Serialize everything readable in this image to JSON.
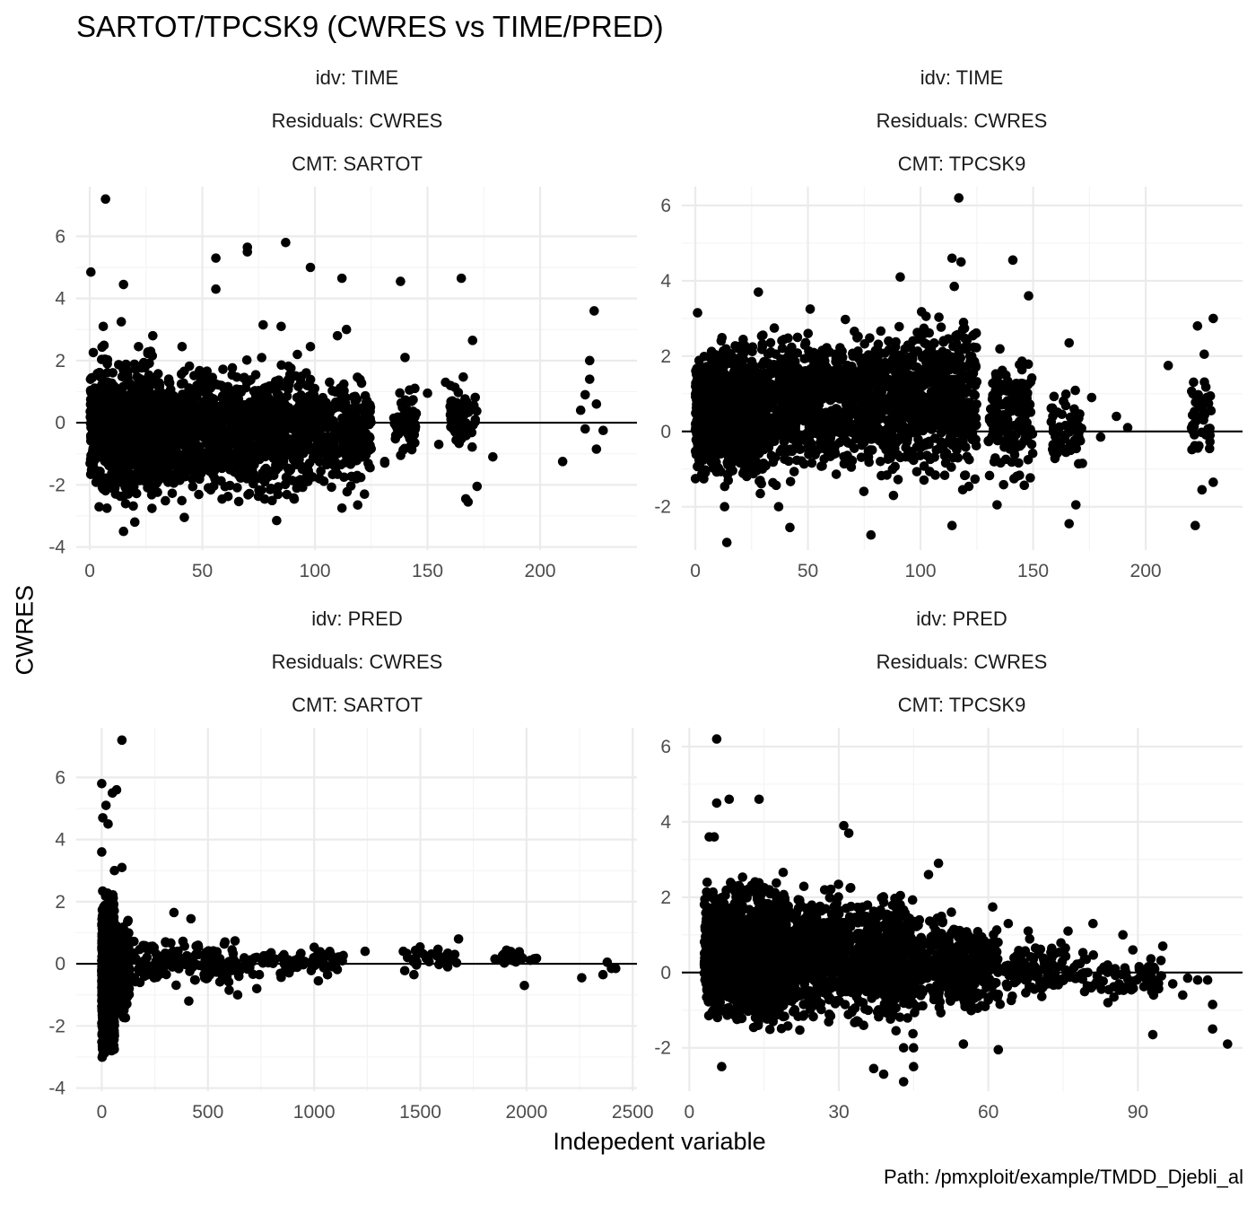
{
  "title": "SARTOT/TPCSK9 (CWRES vs TIME/PRED)",
  "xlabel": "Indepedent variable",
  "ylabel": "CWRES",
  "caption": "Path: /pmxploit/example/TMDD_Djebli_al",
  "colors": {
    "points": "#000000",
    "grid_major": "#ebebeb",
    "grid_minor": "#f4f4f4",
    "hline": "#000000"
  },
  "chart_data": [
    {
      "type": "scatter",
      "strips": [
        "idv: TIME",
        "Residuals: CWRES",
        "CMT: SARTOT"
      ],
      "xticks": [
        0,
        50,
        100,
        150,
        200
      ],
      "yticks": [
        -4,
        -2,
        0,
        2,
        4,
        6
      ],
      "xlim": [
        -6,
        243
      ],
      "ylim": [
        -4.1,
        7.6
      ],
      "hline": 0,
      "outliers": [
        [
          7,
          7.2
        ],
        [
          0.5,
          4.85
        ],
        [
          15,
          4.45
        ],
        [
          14,
          3.25
        ],
        [
          6,
          3.1
        ],
        [
          56,
          5.3
        ],
        [
          56,
          4.3
        ],
        [
          70,
          5.65
        ],
        [
          70,
          5.5
        ],
        [
          87,
          5.8
        ],
        [
          98,
          5.0
        ],
        [
          112,
          4.65
        ],
        [
          138,
          4.55
        ],
        [
          165,
          4.65
        ],
        [
          224,
          3.6
        ],
        [
          41,
          2.45
        ],
        [
          28,
          2.8
        ],
        [
          98,
          2.45
        ],
        [
          77,
          3.15
        ],
        [
          85,
          3.1
        ],
        [
          110,
          2.8
        ],
        [
          114,
          3.0
        ],
        [
          140,
          2.1
        ],
        [
          170,
          2.65
        ],
        [
          222,
          2.0
        ],
        [
          222,
          1.4
        ],
        [
          210,
          -1.25
        ],
        [
          228,
          -0.25
        ],
        [
          179,
          -1.1
        ],
        [
          172,
          -2.05
        ],
        [
          167,
          -2.45
        ],
        [
          168,
          -2.55
        ],
        [
          119,
          -2.65
        ],
        [
          122,
          -2.3
        ],
        [
          112,
          -2.75
        ],
        [
          83,
          -3.15
        ],
        [
          42,
          -3.05
        ],
        [
          20,
          -3.2
        ],
        [
          15,
          -3.5
        ],
        [
          131,
          -1.25
        ],
        [
          150,
          0.95
        ],
        [
          158,
          1.3
        ],
        [
          155,
          -0.7
        ],
        [
          142,
          1.05
        ],
        [
          161,
          0.7
        ],
        [
          218,
          0.4
        ],
        [
          220,
          0.9
        ],
        [
          225,
          0.6
        ],
        [
          225,
          -0.85
        ],
        [
          131,
          -1.3
        ],
        [
          145,
          0.3
        ],
        [
          220,
          -0.2
        ]
      ],
      "clusters": [
        {
          "x": [
            0,
            30
          ],
          "y": [
            -2.7,
            2.3
          ],
          "n": 900
        },
        {
          "x": [
            30,
            60
          ],
          "y": [
            -2.5,
            1.8
          ],
          "n": 500
        },
        {
          "x": [
            60,
            95
          ],
          "y": [
            -2.7,
            2.0
          ],
          "n": 550
        },
        {
          "x": [
            95,
            125
          ],
          "y": [
            -2.2,
            1.6
          ],
          "n": 350
        },
        {
          "x": [
            135,
            145
          ],
          "y": [
            -1.2,
            1.2
          ],
          "n": 60
        },
        {
          "x": [
            160,
            172
          ],
          "y": [
            -1.0,
            1.4
          ],
          "n": 60
        }
      ]
    },
    {
      "type": "scatter",
      "strips": [
        "idv: TIME",
        "Residuals: CWRES",
        "CMT: TPCSK9"
      ],
      "xticks": [
        0,
        50,
        100,
        150,
        200
      ],
      "yticks": [
        -2,
        0,
        2,
        4,
        6
      ],
      "xlim": [
        -6,
        243
      ],
      "ylim": [
        -3.15,
        6.5
      ],
      "hline": 0,
      "outliers": [
        [
          117,
          6.2
        ],
        [
          114,
          4.6
        ],
        [
          118,
          4.5
        ],
        [
          141,
          4.55
        ],
        [
          148,
          3.6
        ],
        [
          115,
          3.85
        ],
        [
          91,
          4.1
        ],
        [
          14,
          -2.95
        ],
        [
          42,
          -2.55
        ],
        [
          78,
          -2.75
        ],
        [
          114,
          -2.5
        ],
        [
          166,
          -2.45
        ],
        [
          222,
          -2.5
        ],
        [
          176,
          0.9
        ],
        [
          187,
          0.4
        ],
        [
          192,
          0.1
        ],
        [
          210,
          1.75
        ],
        [
          230,
          3.0
        ],
        [
          223,
          2.8
        ],
        [
          226,
          2.05
        ],
        [
          229,
          0.55
        ],
        [
          230,
          -1.35
        ],
        [
          225,
          -1.55
        ],
        [
          221,
          1.0
        ],
        [
          1,
          3.15
        ],
        [
          28,
          3.7
        ],
        [
          51,
          3.25
        ],
        [
          13,
          -2.0
        ],
        [
          37,
          -2.0
        ],
        [
          88,
          -1.7
        ],
        [
          134,
          -1.95
        ],
        [
          169,
          -1.95
        ],
        [
          166,
          2.35
        ],
        [
          180,
          -0.15
        ]
      ],
      "clusters": [
        {
          "x": [
            0,
            30
          ],
          "y": [
            -1.5,
            2.6
          ],
          "n": 950
        },
        {
          "x": [
            30,
            60
          ],
          "y": [
            -1.3,
            2.7
          ],
          "n": 500
        },
        {
          "x": [
            60,
            95
          ],
          "y": [
            -1.4,
            2.8
          ],
          "n": 550
        },
        {
          "x": [
            95,
            125
          ],
          "y": [
            -1.5,
            3.2
          ],
          "n": 450
        },
        {
          "x": [
            130,
            150
          ],
          "y": [
            -1.6,
            2.4
          ],
          "n": 170
        },
        {
          "x": [
            158,
            172
          ],
          "y": [
            -1.2,
            1.4
          ],
          "n": 60
        },
        {
          "x": [
            220,
            229
          ],
          "y": [
            -1.2,
            2.0
          ],
          "n": 40
        }
      ]
    },
    {
      "type": "scatter",
      "strips": [
        "idv: PRED",
        "Residuals: CWRES",
        "CMT: SARTOT"
      ],
      "xticks": [
        0,
        500,
        1000,
        1500,
        2000,
        2500
      ],
      "yticks": [
        -4,
        -2,
        0,
        2,
        4,
        6
      ],
      "xlim": [
        -120,
        2520
      ],
      "ylim": [
        -4.1,
        7.6
      ],
      "hline": 0,
      "outliers": [
        [
          95,
          7.2
        ],
        [
          0,
          5.8
        ],
        [
          20,
          5.1
        ],
        [
          50,
          5.5
        ],
        [
          70,
          5.6
        ],
        [
          5,
          4.7
        ],
        [
          30,
          4.5
        ],
        [
          0,
          3.6
        ],
        [
          95,
          3.1
        ],
        [
          60,
          3.0
        ],
        [
          2380,
          0.05
        ],
        [
          2260,
          -0.45
        ],
        [
          2360,
          -0.35
        ],
        [
          2400,
          -0.15
        ],
        [
          2420,
          -0.15
        ],
        [
          1990,
          -0.7
        ],
        [
          1680,
          0.8
        ],
        [
          1440,
          0.2
        ],
        [
          1470,
          -0.35
        ],
        [
          1420,
          0.4
        ],
        [
          1240,
          0.4
        ],
        [
          1020,
          -0.55
        ],
        [
          730,
          -0.8
        ],
        [
          640,
          -1.0
        ],
        [
          600,
          -0.85
        ],
        [
          410,
          -1.2
        ],
        [
          340,
          1.65
        ],
        [
          420,
          1.45
        ],
        [
          180,
          -0.6
        ]
      ],
      "clusters": [
        {
          "x": [
            0,
            60
          ],
          "y": [
            -3.1,
            2.3
          ],
          "n": 1400
        },
        {
          "x": [
            60,
            130
          ],
          "y": [
            -1.8,
            1.3
          ],
          "n": 350
        },
        {
          "x": [
            150,
            650
          ],
          "y": [
            -0.9,
            0.9
          ],
          "n": 170
        },
        {
          "x": [
            650,
            1150
          ],
          "y": [
            -0.5,
            0.6
          ],
          "n": 80
        },
        {
          "x": [
            1400,
            1700
          ],
          "y": [
            -0.3,
            0.6
          ],
          "n": 25
        },
        {
          "x": [
            1850,
            2050
          ],
          "y": [
            -0.1,
            0.5
          ],
          "n": 25
        }
      ]
    },
    {
      "type": "scatter",
      "strips": [
        "idv: PRED",
        "Residuals: CWRES",
        "CMT: TPCSK9"
      ],
      "xticks": [
        0,
        30,
        60,
        90
      ],
      "yticks": [
        -2,
        0,
        2,
        4,
        6
      ],
      "xlim": [
        -1.5,
        111
      ],
      "ylim": [
        -3.15,
        6.5
      ],
      "hline": 0,
      "outliers": [
        [
          5.5,
          6.2
        ],
        [
          5.5,
          4.5
        ],
        [
          8,
          4.6
        ],
        [
          14,
          4.6
        ],
        [
          31,
          3.9
        ],
        [
          32,
          3.7
        ],
        [
          4,
          3.6
        ],
        [
          5,
          3.6
        ],
        [
          48,
          2.6
        ],
        [
          50,
          2.9
        ],
        [
          50,
          -0.6
        ],
        [
          55,
          -1.9
        ],
        [
          62,
          -2.05
        ],
        [
          37,
          -2.55
        ],
        [
          39,
          -2.7
        ],
        [
          43,
          -2.9
        ],
        [
          43,
          -2.0
        ],
        [
          45,
          -2.0
        ],
        [
          45,
          -2.5
        ],
        [
          6.5,
          -2.5
        ],
        [
          102,
          -0.2
        ],
        [
          104,
          -0.2
        ],
        [
          105,
          -0.85
        ],
        [
          105,
          -1.5
        ],
        [
          108,
          -1.9
        ],
        [
          95,
          0.7
        ],
        [
          93,
          -1.65
        ],
        [
          89,
          0.6
        ],
        [
          87,
          1.0
        ],
        [
          81,
          1.3
        ],
        [
          76,
          1.1
        ],
        [
          68,
          1.1
        ],
        [
          64,
          1.3
        ],
        [
          84,
          -0.8
        ],
        [
          99,
          -0.6
        ],
        [
          100,
          -0.15
        ],
        [
          97,
          -0.3
        ]
      ],
      "clusters": [
        {
          "x": [
            3,
            20
          ],
          "y": [
            -1.6,
            2.6
          ],
          "n": 1300
        },
        {
          "x": [
            20,
            45
          ],
          "y": [
            -1.5,
            2.4
          ],
          "n": 900
        },
        {
          "x": [
            45,
            62
          ],
          "y": [
            -1.2,
            1.7
          ],
          "n": 400
        },
        {
          "x": [
            62,
            80
          ],
          "y": [
            -0.8,
            0.9
          ],
          "n": 120
        },
        {
          "x": [
            80,
            95
          ],
          "y": [
            -1.0,
            0.6
          ],
          "n": 60
        }
      ]
    }
  ]
}
